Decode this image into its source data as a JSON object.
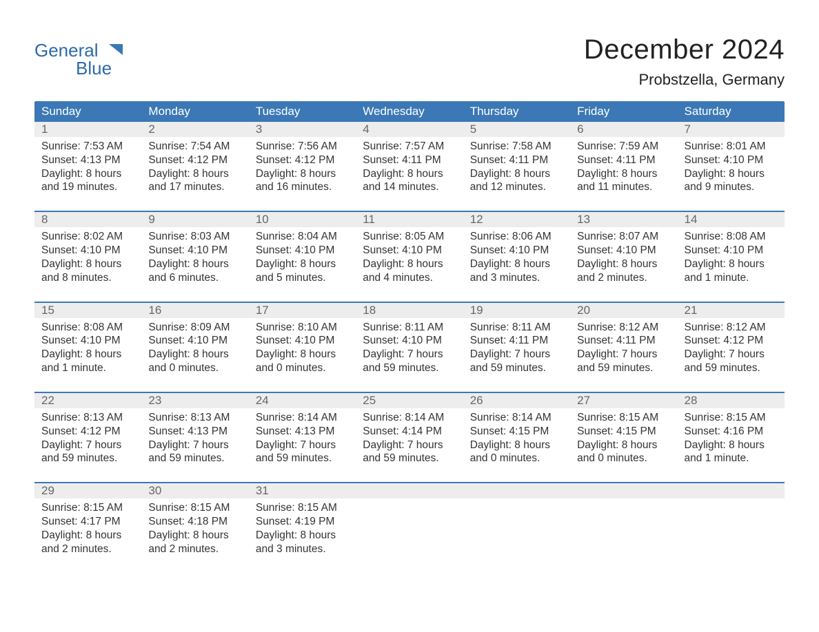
{
  "brand": {
    "name_1": "General",
    "name_2": "Blue"
  },
  "header": {
    "title": "December 2024",
    "location": "Probstzella, Germany"
  },
  "colors": {
    "blue": "#3b78b5",
    "week_band": "#ededed",
    "separator": "#3b78b5",
    "text": "#333333",
    "muted": "#666666",
    "bg": "#ffffff"
  },
  "weekdays": [
    "Sunday",
    "Monday",
    "Tuesday",
    "Wednesday",
    "Thursday",
    "Friday",
    "Saturday"
  ],
  "weeks": [
    {
      "days": [
        {
          "date": "1",
          "sunrise": "Sunrise: 7:53 AM",
          "sunset": "Sunset: 4:13 PM",
          "dl1": "Daylight: 8 hours",
          "dl2": "and 19 minutes."
        },
        {
          "date": "2",
          "sunrise": "Sunrise: 7:54 AM",
          "sunset": "Sunset: 4:12 PM",
          "dl1": "Daylight: 8 hours",
          "dl2": "and 17 minutes."
        },
        {
          "date": "3",
          "sunrise": "Sunrise: 7:56 AM",
          "sunset": "Sunset: 4:12 PM",
          "dl1": "Daylight: 8 hours",
          "dl2": "and 16 minutes."
        },
        {
          "date": "4",
          "sunrise": "Sunrise: 7:57 AM",
          "sunset": "Sunset: 4:11 PM",
          "dl1": "Daylight: 8 hours",
          "dl2": "and 14 minutes."
        },
        {
          "date": "5",
          "sunrise": "Sunrise: 7:58 AM",
          "sunset": "Sunset: 4:11 PM",
          "dl1": "Daylight: 8 hours",
          "dl2": "and 12 minutes."
        },
        {
          "date": "6",
          "sunrise": "Sunrise: 7:59 AM",
          "sunset": "Sunset: 4:11 PM",
          "dl1": "Daylight: 8 hours",
          "dl2": "and 11 minutes."
        },
        {
          "date": "7",
          "sunrise": "Sunrise: 8:01 AM",
          "sunset": "Sunset: 4:10 PM",
          "dl1": "Daylight: 8 hours",
          "dl2": "and 9 minutes."
        }
      ]
    },
    {
      "days": [
        {
          "date": "8",
          "sunrise": "Sunrise: 8:02 AM",
          "sunset": "Sunset: 4:10 PM",
          "dl1": "Daylight: 8 hours",
          "dl2": "and 8 minutes."
        },
        {
          "date": "9",
          "sunrise": "Sunrise: 8:03 AM",
          "sunset": "Sunset: 4:10 PM",
          "dl1": "Daylight: 8 hours",
          "dl2": "and 6 minutes."
        },
        {
          "date": "10",
          "sunrise": "Sunrise: 8:04 AM",
          "sunset": "Sunset: 4:10 PM",
          "dl1": "Daylight: 8 hours",
          "dl2": "and 5 minutes."
        },
        {
          "date": "11",
          "sunrise": "Sunrise: 8:05 AM",
          "sunset": "Sunset: 4:10 PM",
          "dl1": "Daylight: 8 hours",
          "dl2": "and 4 minutes."
        },
        {
          "date": "12",
          "sunrise": "Sunrise: 8:06 AM",
          "sunset": "Sunset: 4:10 PM",
          "dl1": "Daylight: 8 hours",
          "dl2": "and 3 minutes."
        },
        {
          "date": "13",
          "sunrise": "Sunrise: 8:07 AM",
          "sunset": "Sunset: 4:10 PM",
          "dl1": "Daylight: 8 hours",
          "dl2": "and 2 minutes."
        },
        {
          "date": "14",
          "sunrise": "Sunrise: 8:08 AM",
          "sunset": "Sunset: 4:10 PM",
          "dl1": "Daylight: 8 hours",
          "dl2": "and 1 minute."
        }
      ]
    },
    {
      "days": [
        {
          "date": "15",
          "sunrise": "Sunrise: 8:08 AM",
          "sunset": "Sunset: 4:10 PM",
          "dl1": "Daylight: 8 hours",
          "dl2": "and 1 minute."
        },
        {
          "date": "16",
          "sunrise": "Sunrise: 8:09 AM",
          "sunset": "Sunset: 4:10 PM",
          "dl1": "Daylight: 8 hours",
          "dl2": "and 0 minutes."
        },
        {
          "date": "17",
          "sunrise": "Sunrise: 8:10 AM",
          "sunset": "Sunset: 4:10 PM",
          "dl1": "Daylight: 8 hours",
          "dl2": "and 0 minutes."
        },
        {
          "date": "18",
          "sunrise": "Sunrise: 8:11 AM",
          "sunset": "Sunset: 4:10 PM",
          "dl1": "Daylight: 7 hours",
          "dl2": "and 59 minutes."
        },
        {
          "date": "19",
          "sunrise": "Sunrise: 8:11 AM",
          "sunset": "Sunset: 4:11 PM",
          "dl1": "Daylight: 7 hours",
          "dl2": "and 59 minutes."
        },
        {
          "date": "20",
          "sunrise": "Sunrise: 8:12 AM",
          "sunset": "Sunset: 4:11 PM",
          "dl1": "Daylight: 7 hours",
          "dl2": "and 59 minutes."
        },
        {
          "date": "21",
          "sunrise": "Sunrise: 8:12 AM",
          "sunset": "Sunset: 4:12 PM",
          "dl1": "Daylight: 7 hours",
          "dl2": "and 59 minutes."
        }
      ]
    },
    {
      "days": [
        {
          "date": "22",
          "sunrise": "Sunrise: 8:13 AM",
          "sunset": "Sunset: 4:12 PM",
          "dl1": "Daylight: 7 hours",
          "dl2": "and 59 minutes."
        },
        {
          "date": "23",
          "sunrise": "Sunrise: 8:13 AM",
          "sunset": "Sunset: 4:13 PM",
          "dl1": "Daylight: 7 hours",
          "dl2": "and 59 minutes."
        },
        {
          "date": "24",
          "sunrise": "Sunrise: 8:14 AM",
          "sunset": "Sunset: 4:13 PM",
          "dl1": "Daylight: 7 hours",
          "dl2": "and 59 minutes."
        },
        {
          "date": "25",
          "sunrise": "Sunrise: 8:14 AM",
          "sunset": "Sunset: 4:14 PM",
          "dl1": "Daylight: 7 hours",
          "dl2": "and 59 minutes."
        },
        {
          "date": "26",
          "sunrise": "Sunrise: 8:14 AM",
          "sunset": "Sunset: 4:15 PM",
          "dl1": "Daylight: 8 hours",
          "dl2": "and 0 minutes."
        },
        {
          "date": "27",
          "sunrise": "Sunrise: 8:15 AM",
          "sunset": "Sunset: 4:15 PM",
          "dl1": "Daylight: 8 hours",
          "dl2": "and 0 minutes."
        },
        {
          "date": "28",
          "sunrise": "Sunrise: 8:15 AM",
          "sunset": "Sunset: 4:16 PM",
          "dl1": "Daylight: 8 hours",
          "dl2": "and 1 minute."
        }
      ]
    },
    {
      "days": [
        {
          "date": "29",
          "sunrise": "Sunrise: 8:15 AM",
          "sunset": "Sunset: 4:17 PM",
          "dl1": "Daylight: 8 hours",
          "dl2": "and 2 minutes."
        },
        {
          "date": "30",
          "sunrise": "Sunrise: 8:15 AM",
          "sunset": "Sunset: 4:18 PM",
          "dl1": "Daylight: 8 hours",
          "dl2": "and 2 minutes."
        },
        {
          "date": "31",
          "sunrise": "Sunrise: 8:15 AM",
          "sunset": "Sunset: 4:19 PM",
          "dl1": "Daylight: 8 hours",
          "dl2": "and 3 minutes."
        },
        {
          "date": "",
          "sunrise": "",
          "sunset": "",
          "dl1": "",
          "dl2": ""
        },
        {
          "date": "",
          "sunrise": "",
          "sunset": "",
          "dl1": "",
          "dl2": ""
        },
        {
          "date": "",
          "sunrise": "",
          "sunset": "",
          "dl1": "",
          "dl2": ""
        },
        {
          "date": "",
          "sunrise": "",
          "sunset": "",
          "dl1": "",
          "dl2": ""
        }
      ]
    }
  ]
}
